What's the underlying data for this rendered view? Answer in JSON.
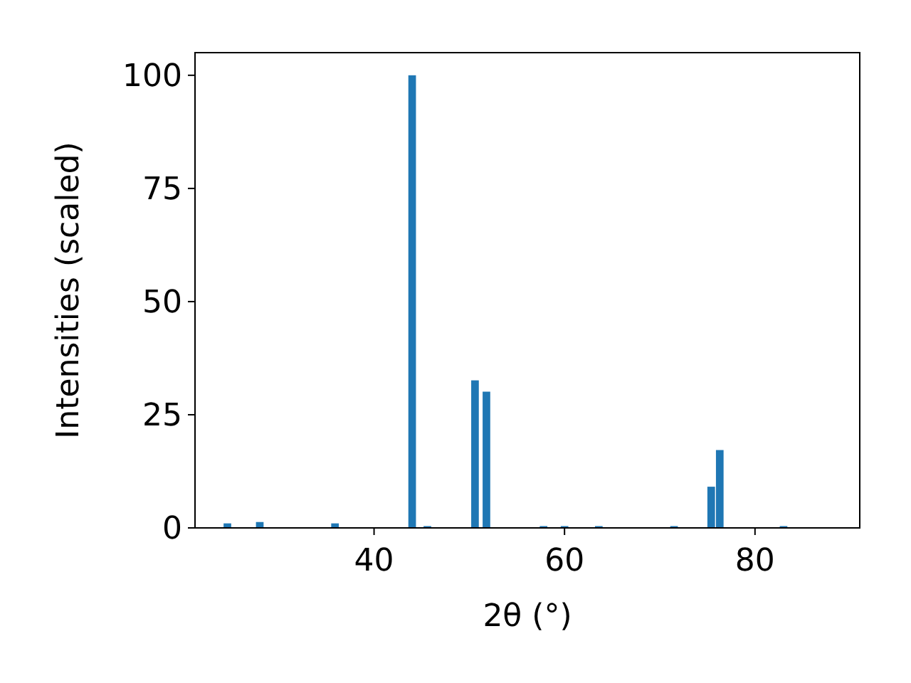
{
  "chart_data": {
    "type": "bar",
    "xlabel": "2θ (°)",
    "ylabel": "Intensities (scaled)",
    "x": [
      24.6,
      28.0,
      35.9,
      44.0,
      45.6,
      50.6,
      51.8,
      57.8,
      60.0,
      63.6,
      71.5,
      75.4,
      76.3,
      83.0
    ],
    "values": [
      1.0,
      1.3,
      1.0,
      100,
      0.4,
      32.6,
      30.1,
      0.4,
      0.4,
      0.4,
      0.4,
      9.1,
      17.2,
      0.4
    ],
    "color": "#1f77b4",
    "xlim": [
      21.2,
      91.0
    ],
    "xticks": [
      40,
      60,
      80
    ],
    "ylim": [
      0,
      105
    ],
    "yticks": [
      0,
      25,
      50,
      75,
      100
    ]
  }
}
